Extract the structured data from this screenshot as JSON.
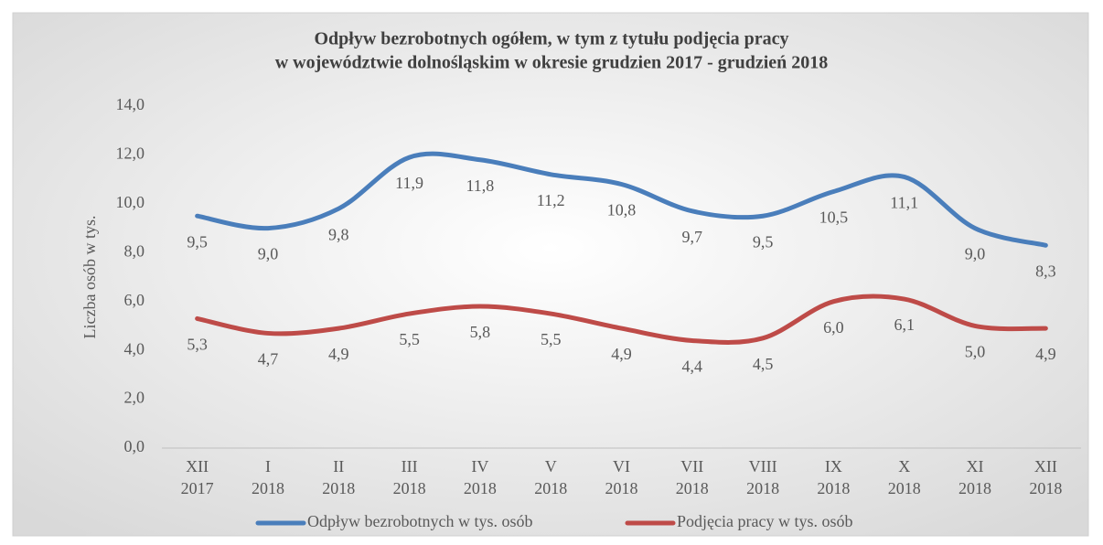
{
  "chart_data": {
    "type": "line",
    "title": [
      "Odpływ bezrobotnych ogółem, w tym z tytułu podjęcia pracy",
      "w województwie dolnośląskim w okresie grudzien 2017 - grudzień 2018"
    ],
    "y_label": "Liczba osób w tys.",
    "categories": [
      [
        "XII",
        "2017"
      ],
      [
        "I",
        "2018"
      ],
      [
        "II",
        "2018"
      ],
      [
        "III",
        "2018"
      ],
      [
        "IV",
        "2018"
      ],
      [
        "V",
        "2018"
      ],
      [
        "VI",
        "2018"
      ],
      [
        "VII",
        "2018"
      ],
      [
        "VIII",
        "2018"
      ],
      [
        "IX",
        "2018"
      ],
      [
        "X",
        "2018"
      ],
      [
        "XI",
        "2018"
      ],
      [
        "XII",
        "2018"
      ]
    ],
    "series": [
      {
        "name": "Odpływ bezrobotnych w tys. osób",
        "color": "#4a7ebb",
        "values": [
          9.5,
          9.0,
          9.8,
          11.9,
          11.8,
          11.2,
          10.8,
          9.7,
          9.5,
          10.5,
          11.1,
          9.0,
          8.3
        ],
        "value_labels": [
          "9,5",
          "9,0",
          "9,8",
          "11,9",
          "11,8",
          "11,2",
          "10,8",
          "9,7",
          "9,5",
          "10,5",
          "11,1",
          "9,0",
          "8,3"
        ]
      },
      {
        "name": "Podjęcia pracy w tys. osób",
        "color": "#be4b48",
        "values": [
          5.3,
          4.7,
          4.9,
          5.5,
          5.8,
          5.5,
          4.9,
          4.4,
          4.5,
          6.0,
          6.1,
          5.0,
          4.9
        ],
        "value_labels": [
          "5,3",
          "4,7",
          "4,9",
          "5,5",
          "5,8",
          "5,5",
          "4,9",
          "4,4",
          "4,5",
          "6,0",
          "6,1",
          "5,0",
          "4,9"
        ]
      }
    ],
    "ylim": [
      0,
      14
    ],
    "yticks": [
      {
        "value": 0,
        "label": "0,0"
      },
      {
        "value": 2,
        "label": "2,0"
      },
      {
        "value": 4,
        "label": "4,0"
      },
      {
        "value": 6,
        "label": "6,0"
      },
      {
        "value": 8,
        "label": "8,0"
      },
      {
        "value": 10,
        "label": "10,0"
      },
      {
        "value": 12,
        "label": "12,0"
      },
      {
        "value": 14,
        "label": "14,0"
      }
    ],
    "grid": false,
    "legend": "bottom"
  }
}
